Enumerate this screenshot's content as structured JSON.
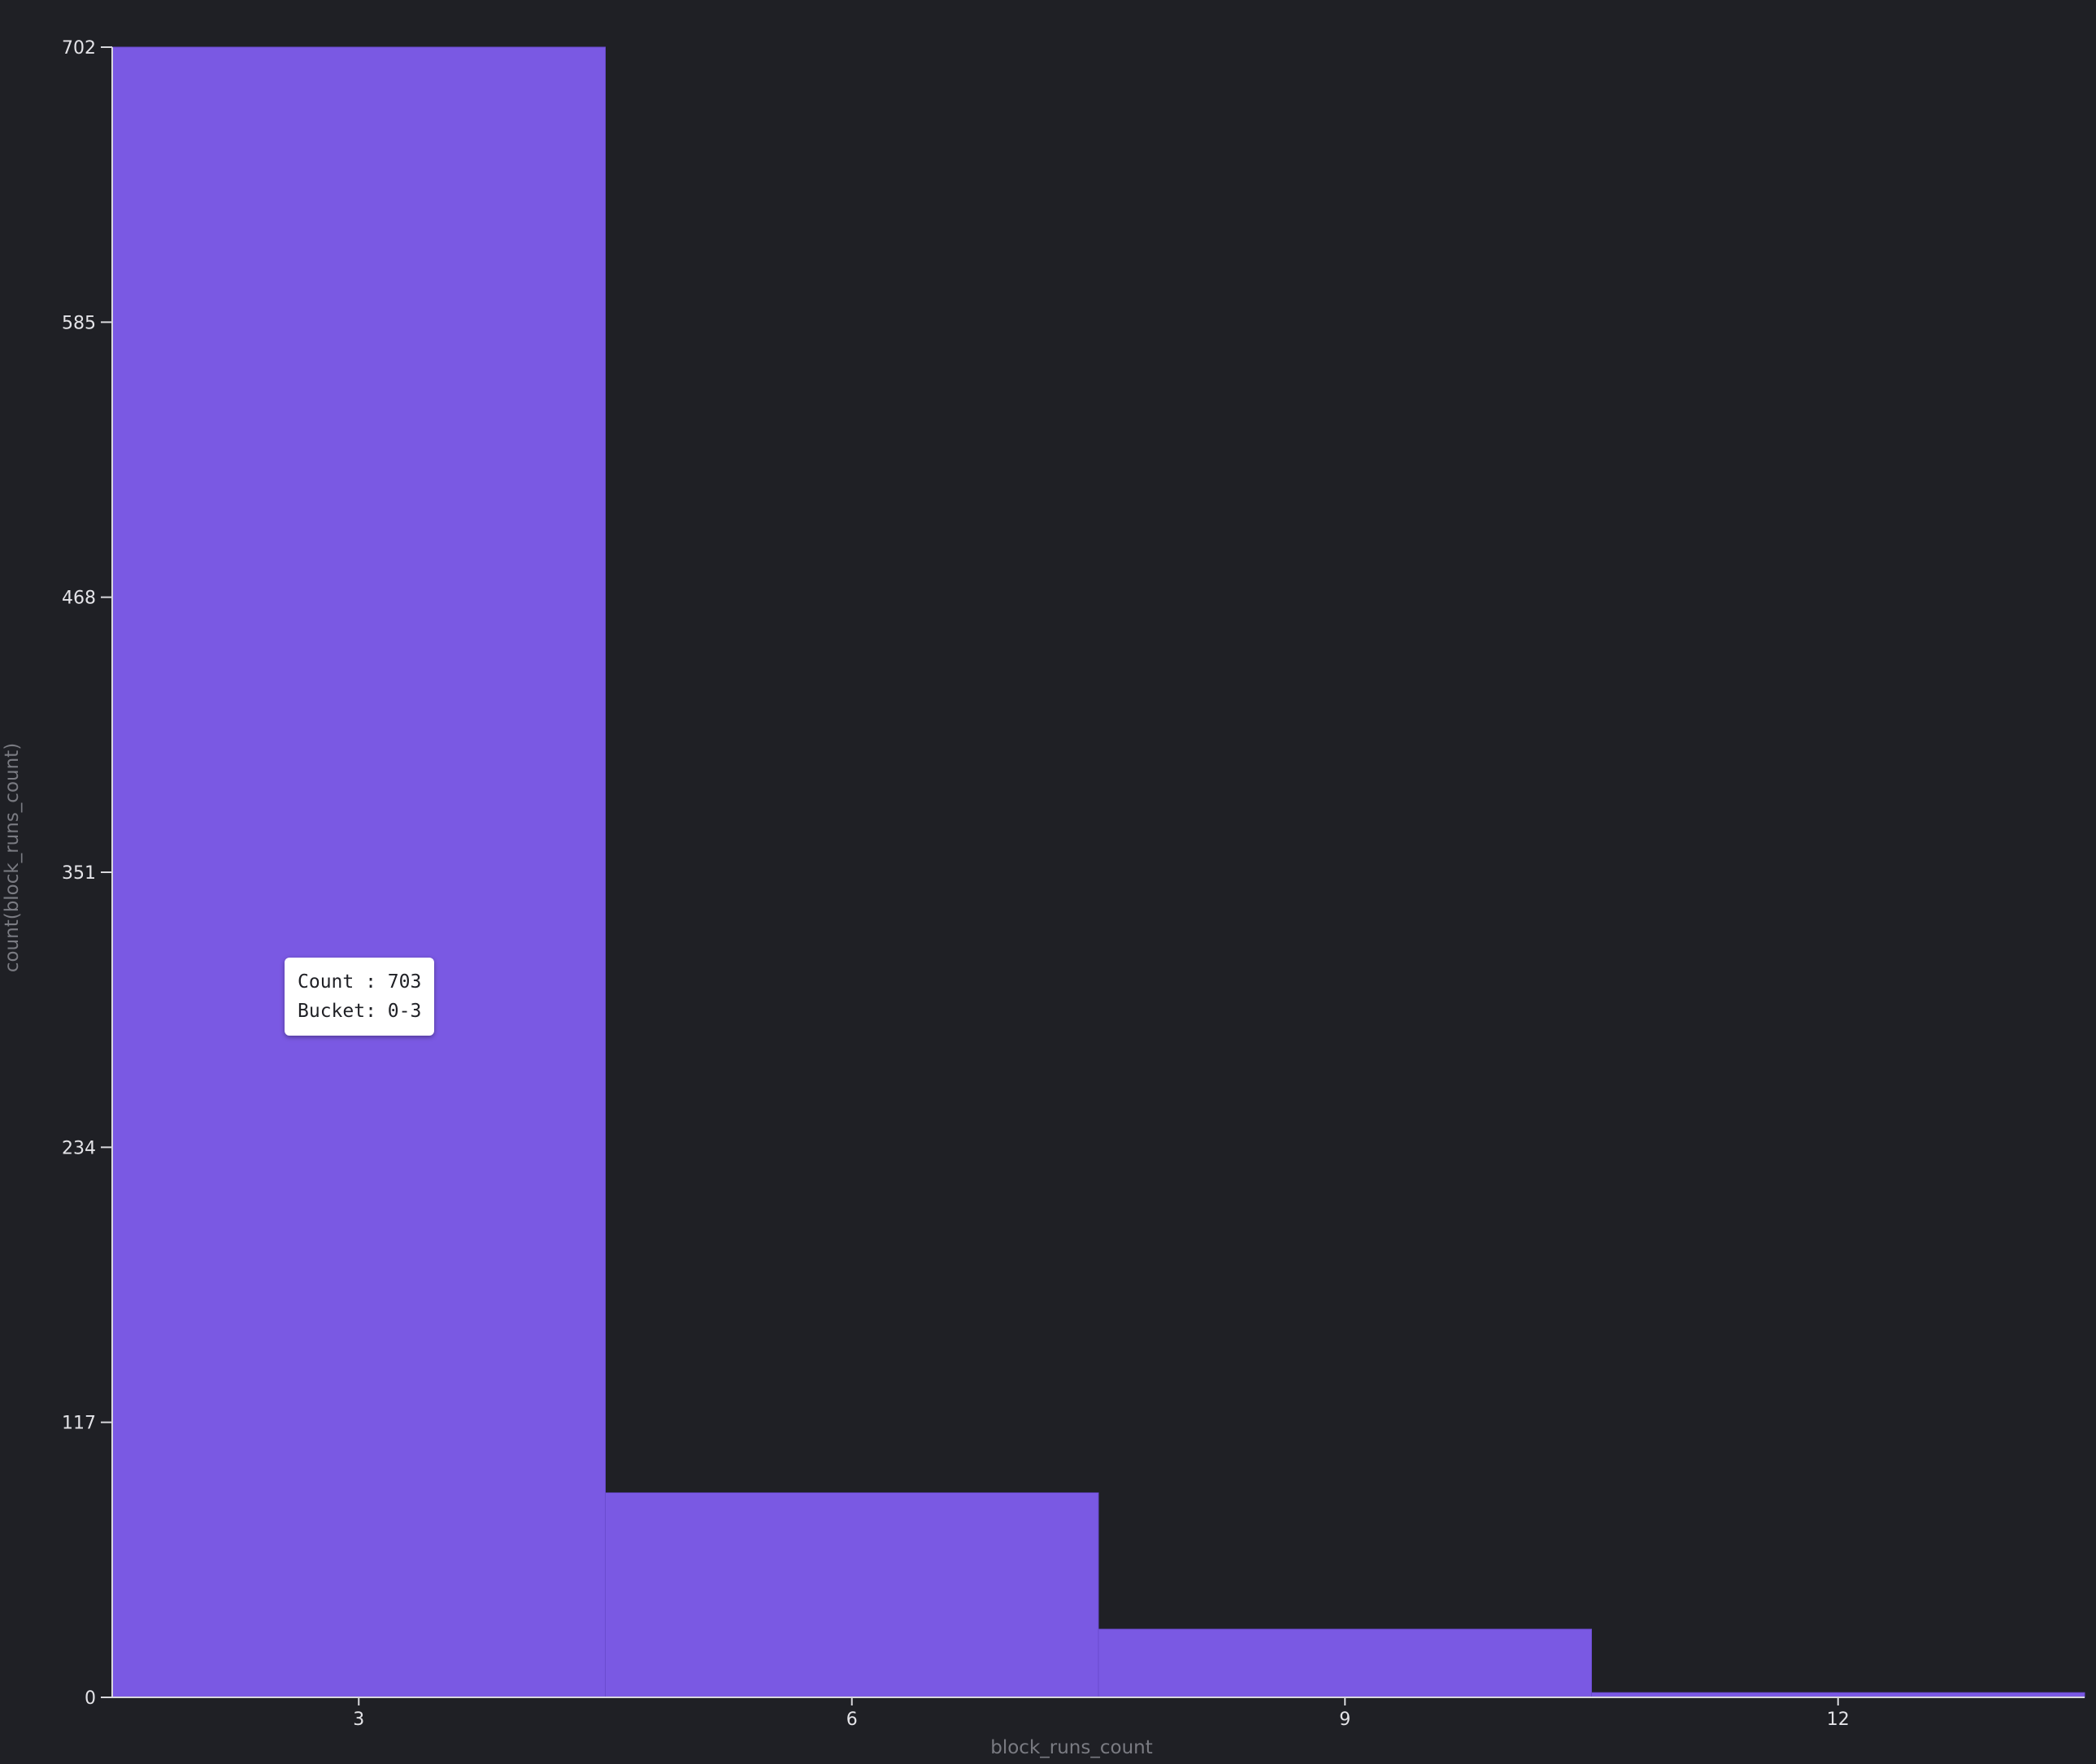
{
  "colors": {
    "background": "#1f2025",
    "bar": "#7a59e3",
    "axis": "#d8d8dc"
  },
  "chart_data": {
    "type": "bar",
    "title": "",
    "xlabel": "block_runs_count",
    "ylabel": "count(block_runs_count)",
    "x_ticks": [
      3,
      6,
      9,
      12
    ],
    "y_ticks": [
      0,
      117,
      234,
      351,
      468,
      585,
      702
    ],
    "ylim": [
      0,
      702
    ],
    "xlim": [
      1.5,
      13.5
    ],
    "bins": [
      {
        "start": 1.5,
        "end": 4.5,
        "value": 703
      },
      {
        "start": 4.5,
        "end": 7.5,
        "value": 87
      },
      {
        "start": 7.5,
        "end": 10.5,
        "value": 29
      },
      {
        "start": 10.5,
        "end": 13.5,
        "value": 2
      }
    ],
    "grid": false,
    "legend": "none"
  },
  "tooltip": {
    "count_line": "Count : 703",
    "bucket_line": "Bucket: 0-3"
  }
}
